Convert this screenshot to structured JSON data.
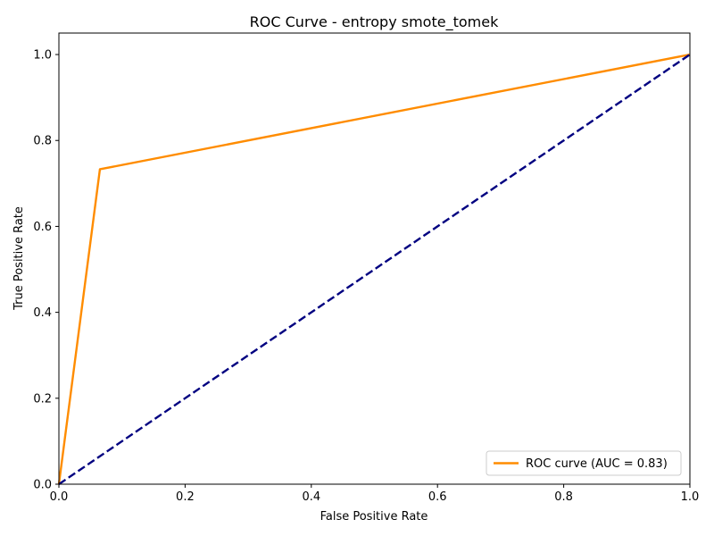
{
  "chart_data": {
    "type": "line",
    "title": "ROC Curve - entropy smote_tomek",
    "xlabel": "False Positive Rate",
    "ylabel": "True Positive Rate",
    "xlim": [
      0.0,
      1.0
    ],
    "ylim": [
      0.0,
      1.05
    ],
    "xticks": [
      "0.0",
      "0.2",
      "0.4",
      "0.6",
      "0.8",
      "1.0"
    ],
    "yticks": [
      "0.0",
      "0.2",
      "0.4",
      "0.6",
      "0.8",
      "1.0"
    ],
    "grid": false,
    "legend_position": "lower-right",
    "series": [
      {
        "name": "ROC curve (AUC = 0.83)",
        "color": "#ff8c00",
        "style": "solid",
        "x": [
          0.0,
          0.065,
          1.0
        ],
        "y": [
          0.0,
          0.733,
          1.0
        ]
      },
      {
        "color": "#000080",
        "style": "dashed",
        "x": [
          0.0,
          1.0
        ],
        "y": [
          0.0,
          1.0
        ]
      }
    ]
  }
}
